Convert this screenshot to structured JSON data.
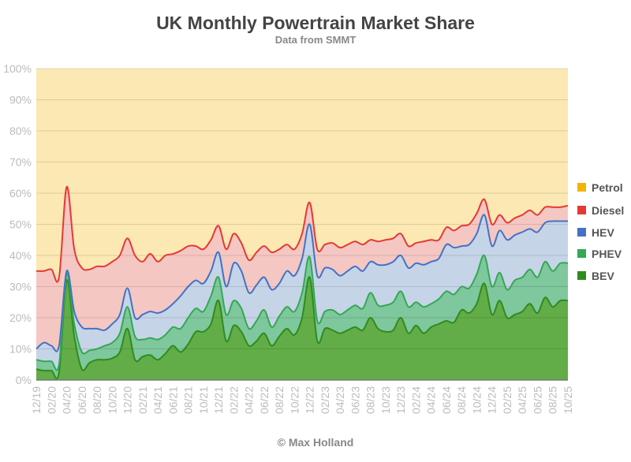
{
  "chart_data": {
    "type": "area",
    "stacked": true,
    "title": "UK Monthly Powertrain Market Share",
    "subtitle": "Data from SMMT",
    "footer": "© Max Holland",
    "ylim": [
      0,
      100
    ],
    "y_ticks": [
      "0%",
      "10%",
      "20%",
      "30%",
      "40%",
      "50%",
      "60%",
      "70%",
      "80%",
      "90%",
      "100%"
    ],
    "grid": true,
    "legend_position": "right",
    "x": [
      "12/19",
      "01/20",
      "02/20",
      "03/20",
      "04/20",
      "05/20",
      "06/20",
      "07/20",
      "08/20",
      "09/20",
      "10/20",
      "11/20",
      "12/20",
      "01/21",
      "02/21",
      "03/21",
      "04/21",
      "05/21",
      "06/21",
      "07/21",
      "08/21",
      "09/21",
      "10/21",
      "11/21",
      "12/21",
      "01/22",
      "02/22",
      "03/22",
      "04/22",
      "05/22",
      "06/22",
      "07/22",
      "08/22",
      "09/22",
      "10/22",
      "11/22",
      "12/22",
      "01/23",
      "02/23",
      "03/23",
      "04/23",
      "05/23",
      "06/23",
      "07/23",
      "08/23",
      "09/23",
      "10/23",
      "11/23",
      "12/23",
      "01/24",
      "02/24",
      "03/24",
      "04/24",
      "05/24",
      "06/24",
      "07/24",
      "08/24",
      "09/24",
      "10/24",
      "11/24",
      "12/24",
      "01/25",
      "02/25",
      "03/25",
      "04/25",
      "05/25",
      "06/25",
      "07/25",
      "08/25",
      "09/25",
      "10/25"
    ],
    "series": [
      {
        "name": "BEV",
        "color": "#2e8b1f",
        "fill": "#62ad47",
        "values": [
          3.5,
          3,
          3,
          2.5,
          32,
          14,
          3.5,
          5.5,
          6.5,
          6.5,
          7,
          9,
          16.5,
          6.5,
          7.5,
          8,
          6.5,
          8.5,
          11,
          9,
          11.5,
          15.5,
          15.5,
          18,
          25.5,
          12.5,
          17.5,
          15.5,
          11,
          12.5,
          15,
          11,
          14,
          16.5,
          14.5,
          20,
          33,
          12.5,
          16.5,
          16,
          15,
          16,
          17,
          16,
          20,
          16.5,
          15.5,
          16,
          20,
          15,
          17.5,
          15,
          17,
          18,
          19,
          18.5,
          22.5,
          21.5,
          24.5,
          31,
          21,
          25.5,
          20,
          21,
          22,
          24.5,
          21.5,
          26.5,
          23.5,
          25.5,
          25.5
        ]
      },
      {
        "name": "PHEV",
        "color": "#34a853",
        "fill": "#7fc79c",
        "values": [
          3,
          3,
          3,
          2.5,
          2,
          4,
          5.5,
          4,
          3.5,
          4.5,
          5,
          6,
          7,
          7.5,
          5.5,
          5.5,
          6.5,
          6,
          6,
          7.5,
          8.5,
          7.5,
          6.5,
          9,
          7.5,
          8.5,
          8,
          7.5,
          5.5,
          6.5,
          7.5,
          6,
          6.5,
          7,
          7.5,
          8,
          6.5,
          6.5,
          5.5,
          6.5,
          6,
          6.5,
          7,
          7,
          8,
          7.5,
          8.5,
          9,
          8.5,
          8.5,
          7.5,
          8.5,
          7.5,
          8,
          9.5,
          9,
          7.5,
          8,
          9.5,
          9,
          9,
          9,
          9,
          11,
          11,
          11,
          11.5,
          11.5,
          11.5,
          12,
          12
        ]
      },
      {
        "name": "HEV",
        "color": "#4472c4",
        "fill": "#c6d4e8",
        "values": [
          3.5,
          6,
          5,
          6,
          1,
          4,
          8,
          7,
          6.5,
          5,
          6,
          6,
          6,
          6,
          8,
          8.5,
          8.5,
          8,
          7.5,
          10.5,
          10,
          9,
          9,
          8,
          8,
          9,
          12,
          12,
          11.5,
          11.5,
          10.5,
          12,
          10.5,
          11.5,
          11.5,
          11,
          10.5,
          14.5,
          14,
          13,
          12.5,
          12.5,
          12.5,
          12,
          10,
          13,
          13,
          13,
          11.5,
          12.5,
          12.5,
          13.5,
          13.5,
          13,
          15,
          15,
          13,
          14,
          13,
          13,
          13,
          13.5,
          16,
          14.5,
          14.5,
          13,
          14.5,
          12.5,
          16,
          13.5,
          13.5
        ]
      },
      {
        "name": "Diesel",
        "color": "#e53935",
        "fill": "#f4c7c3",
        "values": [
          25,
          23,
          24.5,
          22,
          27,
          20,
          19,
          19,
          20,
          20.5,
          20,
          19,
          16,
          20,
          17,
          18.5,
          16.5,
          17.5,
          16,
          14.5,
          13,
          11,
          11,
          10,
          8.5,
          12,
          9.5,
          9,
          10.5,
          10.5,
          10,
          12,
          11,
          8.5,
          8.5,
          8,
          7,
          8.5,
          7.5,
          8.5,
          9,
          8.5,
          8,
          8.5,
          7,
          7.5,
          8,
          7.5,
          7,
          7,
          6.5,
          7.5,
          7,
          6,
          5.5,
          5.5,
          6.5,
          6.5,
          6.5,
          5,
          7,
          5,
          5.5,
          5.5,
          5.5,
          6,
          5.5,
          5,
          4.5,
          4.5,
          5
        ]
      },
      {
        "name": "Petrol",
        "color": "#f4b400",
        "fill": "#fce8b2",
        "values": [
          65,
          65,
          64.5,
          67,
          38,
          58,
          64,
          64.5,
          63.5,
          63.5,
          62,
          60,
          54.5,
          60,
          62,
          59.5,
          62,
          60,
          59.5,
          58.5,
          57,
          57,
          58,
          55,
          50.5,
          58,
          53,
          56,
          61.5,
          59,
          57,
          59,
          58,
          56.5,
          58,
          53,
          43,
          58,
          56.5,
          56,
          57.5,
          56.5,
          55.5,
          56.5,
          55,
          55.5,
          55,
          54.5,
          53,
          57,
          56,
          55.5,
          55,
          55,
          51,
          52,
          50.5,
          50,
          46.5,
          42,
          50,
          47,
          49.5,
          48,
          47,
          45.5,
          47,
          44.5,
          44.5,
          44.5,
          44
        ]
      }
    ],
    "legend_order": [
      "Petrol",
      "Diesel",
      "HEV",
      "PHEV",
      "BEV"
    ]
  }
}
